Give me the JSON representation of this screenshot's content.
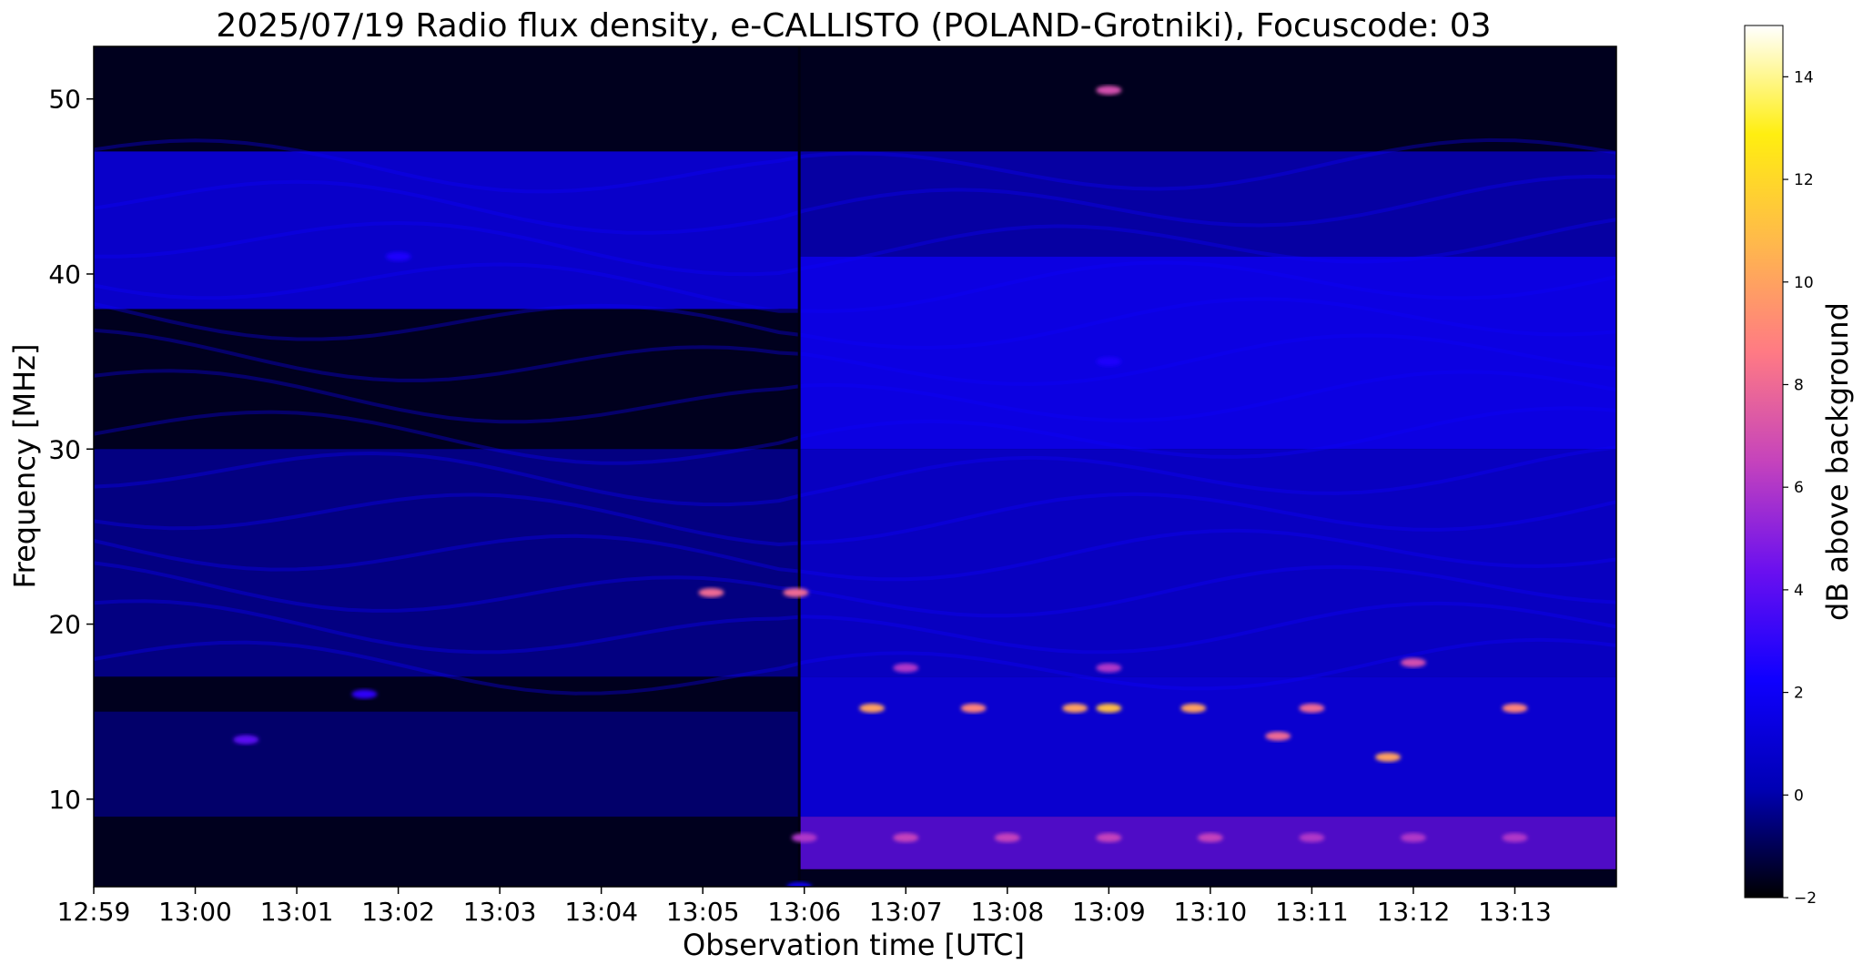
{
  "chart_data": {
    "type": "heatmap",
    "title": "2025/07/19  Radio flux density, e-CALLISTO (POLAND-Grotniki), Focuscode: 03",
    "xlabel": "Observation time [UTC]",
    "ylabel": "Frequency [MHz]",
    "x_ticks": [
      "12:59",
      "13:00",
      "13:01",
      "13:02",
      "13:03",
      "13:04",
      "13:05",
      "13:06",
      "13:07",
      "13:08",
      "13:09",
      "13:10",
      "13:11",
      "13:12",
      "13:13"
    ],
    "x_range": [
      "12:59:00",
      "13:14:00"
    ],
    "y_ticks": [
      10,
      20,
      30,
      40,
      50
    ],
    "ylim": [
      5,
      53
    ],
    "colorbar": {
      "label": "dB above background",
      "ticks": [
        -2,
        0,
        2,
        4,
        6,
        8,
        10,
        12,
        14
      ],
      "range": [
        -2,
        15
      ],
      "colormap": "gnuplot2",
      "colors": [
        "#000000",
        "#0000b4",
        "#0f00ff",
        "#6b10ef",
        "#c543bc",
        "#ff7a84",
        "#ffb84c",
        "#ffee10",
        "#ffffff"
      ]
    },
    "series": [
      {
        "time": "13:05:57",
        "freq_mhz": 5,
        "db": 2.0
      },
      {
        "time": "13:06:00",
        "freq_mhz": 7.8,
        "db": 6.0
      },
      {
        "time": "13:07:00",
        "freq_mhz": 7.8,
        "db": 6.5
      },
      {
        "time": "13:08:00",
        "freq_mhz": 7.8,
        "db": 6.5
      },
      {
        "time": "13:09:00",
        "freq_mhz": 7.8,
        "db": 6.5
      },
      {
        "time": "13:10:00",
        "freq_mhz": 7.8,
        "db": 6.5
      },
      {
        "time": "13:11:00",
        "freq_mhz": 7.8,
        "db": 6.0
      },
      {
        "time": "13:12:00",
        "freq_mhz": 7.8,
        "db": 6.0
      },
      {
        "time": "13:13:00",
        "freq_mhz": 7.8,
        "db": 6.0
      },
      {
        "time": "13:00:30",
        "freq_mhz": 13.4,
        "db": 4.0
      },
      {
        "time": "13:01:40",
        "freq_mhz": 16.0,
        "db": 3.0
      },
      {
        "time": "13:05:05",
        "freq_mhz": 21.8,
        "db": 8.0
      },
      {
        "time": "13:05:55",
        "freq_mhz": 21.8,
        "db": 8.0
      },
      {
        "time": "13:06:40",
        "freq_mhz": 15.2,
        "db": 10.0
      },
      {
        "time": "13:07:40",
        "freq_mhz": 15.2,
        "db": 9.0
      },
      {
        "time": "13:08:40",
        "freq_mhz": 15.2,
        "db": 10.0
      },
      {
        "time": "13:09:00",
        "freq_mhz": 15.2,
        "db": 11.0
      },
      {
        "time": "13:09:50",
        "freq_mhz": 15.2,
        "db": 10.0
      },
      {
        "time": "13:10:40",
        "freq_mhz": 13.6,
        "db": 8.0
      },
      {
        "time": "13:11:00",
        "freq_mhz": 15.2,
        "db": 8.0
      },
      {
        "time": "13:11:45",
        "freq_mhz": 12.4,
        "db": 10.0
      },
      {
        "time": "13:13:00",
        "freq_mhz": 15.2,
        "db": 9.0
      },
      {
        "time": "13:07:00",
        "freq_mhz": 17.5,
        "db": 6.0
      },
      {
        "time": "13:09:00",
        "freq_mhz": 17.5,
        "db": 6.0
      },
      {
        "time": "13:12:00",
        "freq_mhz": 17.8,
        "db": 7.0
      },
      {
        "time": "13:09:00",
        "freq_mhz": 50.5,
        "db": 7.0
      },
      {
        "time": "13:02:00",
        "freq_mhz": 41,
        "db": 2.5
      },
      {
        "time": "13:09:00",
        "freq_mhz": 35,
        "db": 2.5
      }
    ]
  }
}
